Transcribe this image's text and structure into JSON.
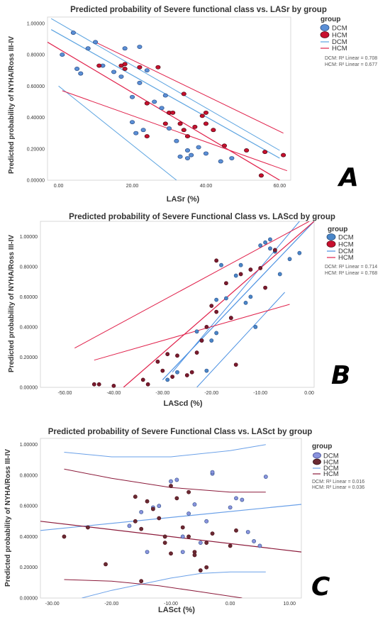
{
  "figure": {
    "panels": [
      {
        "letter": "A",
        "title": "Predicted probability of Severe functional class vs. LASr by group",
        "ylabel": "Predicted probability of NYHA/Ross III-IV",
        "xlabel": "LASr (%)",
        "legend": {
          "title": "group",
          "markers": [
            "DCM",
            "HCM"
          ],
          "lines": [
            "DCM",
            "HCM"
          ]
        },
        "r2": [
          "DCM: R² Linear = 0.708",
          "HCM: R² Linear = 0.677"
        ]
      },
      {
        "letter": "B",
        "title": "Predicted probability of Severe Functional Class vs. LAScd by group",
        "ylabel": "Predicted probability of NYHA/Ross III-IV",
        "xlabel": "LAScd (%)",
        "legend": {
          "title": "group",
          "markers": [
            "DCM",
            "HCM"
          ],
          "lines": [
            "DCM",
            "HCM"
          ]
        },
        "r2": [
          "DCM: R² Linear = 0.714",
          "HCM: R² Linear = 0.768"
        ]
      },
      {
        "letter": "C",
        "title": "Predicted probability of Severe Functional Class vs. LASct by group",
        "ylabel": "Predicted probability of NYHA/Ross III-IV",
        "xlabel": "LASct (%)",
        "legend": {
          "title": "group",
          "markers": [
            "DCM",
            "HCM"
          ],
          "lines": [
            "DCM",
            "HCM"
          ]
        },
        "r2": [
          "DCM: R² Linear = 0.016",
          "HCM: R² Linear = 0.036"
        ]
      }
    ]
  },
  "chart_data": [
    {
      "type": "scatter",
      "title": "Predicted probability of Severe functional class vs. LASr by group",
      "xlabel": "LASr (%)",
      "ylabel": "Predicted probability of NYHA/Ross III-IV",
      "xlim": [
        -3,
        63
      ],
      "ylim": [
        0,
        1.04
      ],
      "x_ticks": [
        0,
        20,
        40,
        60
      ],
      "x_tick_labels": [
        "0.00",
        "20.00",
        "40.00",
        "60.00"
      ],
      "y_ticks": [
        0,
        0.2,
        0.4,
        0.6,
        0.8,
        1.0
      ],
      "y_tick_labels": [
        "0.00000",
        "0.20000",
        "0.40000",
        "0.60000",
        "0.80000",
        "1.00000"
      ],
      "grid": true,
      "legend_position": "right",
      "colors": {
        "DCM": "#5b8fd6",
        "HCM": "#c8102e",
        "DCM_line": "#5ba3e0",
        "HCM_line": "#e0204a"
      },
      "series": [
        {
          "name": "DCM",
          "marker": "circle",
          "color": "#5b8fd6",
          "x": [
            1,
            4,
            5,
            6,
            8,
            10,
            12,
            15,
            17,
            18,
            20,
            20,
            21,
            22,
            22,
            23,
            24,
            26,
            28,
            29,
            30,
            32,
            33,
            35,
            35,
            36,
            38,
            40,
            44,
            47
          ],
          "y": [
            0.8,
            0.94,
            0.71,
            0.68,
            0.84,
            0.88,
            0.73,
            0.69,
            0.66,
            0.84,
            0.53,
            0.37,
            0.3,
            0.85,
            0.62,
            0.32,
            0.7,
            0.5,
            0.46,
            0.54,
            0.33,
            0.25,
            0.15,
            0.19,
            0.14,
            0.16,
            0.21,
            0.17,
            0.12,
            0.14
          ]
        },
        {
          "name": "HCM",
          "marker": "circle",
          "color": "#c8102e",
          "x": [
            11,
            17,
            18,
            18,
            22,
            24,
            24,
            27,
            29,
            30,
            31,
            33,
            34,
            34,
            35,
            37,
            39,
            40,
            40,
            42,
            45,
            51,
            55,
            56,
            61
          ],
          "y": [
            0.73,
            0.73,
            0.74,
            0.71,
            0.72,
            0.49,
            0.28,
            0.72,
            0.36,
            0.43,
            0.43,
            0.36,
            0.32,
            0.55,
            0.28,
            0.34,
            0.41,
            0.36,
            0.43,
            0.32,
            0.22,
            0.19,
            0.03,
            0.18,
            0.16
          ]
        }
      ],
      "fit_lines": [
        {
          "name": "DCM",
          "role": "fit",
          "x": [
            -2,
            60
          ],
          "y": [
            0.96,
            0.14
          ]
        },
        {
          "name": "DCM",
          "role": "upper bound",
          "x": [
            -2,
            60
          ],
          "y": [
            1.03,
            0.19
          ]
        },
        {
          "name": "DCM",
          "role": "lower bound",
          "x": [
            0,
            32
          ],
          "y": [
            0.6,
            0.0
          ]
        },
        {
          "name": "HCM",
          "role": "fit",
          "x": [
            -3,
            60
          ],
          "y": [
            0.88,
            0.0
          ]
        },
        {
          "name": "HCM",
          "role": "upper bound",
          "x": [
            10,
            61
          ],
          "y": [
            0.88,
            0.3
          ]
        },
        {
          "name": "HCM",
          "role": "lower bound",
          "x": [
            1,
            62
          ],
          "y": [
            0.57,
            0.06
          ]
        }
      ]
    },
    {
      "type": "scatter",
      "title": "Predicted probability of Severe Functional Class vs. LAScd by group",
      "xlabel": "LAScd (%)",
      "ylabel": "Predicted probability of NYHA/Ross III-IV",
      "xlim": [
        -55,
        1
      ],
      "ylim": [
        0,
        1.1
      ],
      "x_ticks": [
        -50,
        -40,
        -30,
        -20,
        -10,
        0
      ],
      "x_tick_labels": [
        "-50.00",
        "-40.00",
        "-30.00",
        "-20.00",
        "-10.00",
        "0.00"
      ],
      "y_ticks": [
        0,
        0.2,
        0.4,
        0.6,
        0.8,
        1.0
      ],
      "y_tick_labels": [
        "0.00000",
        "0.20000",
        "0.40000",
        "0.60000",
        "0.80000",
        "1.00000"
      ],
      "grid": true,
      "legend_position": "right",
      "colors": {
        "DCM": "#4a86c8",
        "HCM": "#c8102e",
        "DCM_line": "#4a90e2",
        "HCM_line": "#e0204a"
      },
      "series": [
        {
          "name": "DCM",
          "marker": "circle",
          "color": "#4a86c8",
          "x": [
            -29,
            -27,
            -23,
            -22,
            -21,
            -20,
            -19,
            -19,
            -18,
            -17,
            -16,
            -15,
            -14,
            -13,
            -12,
            -11,
            -10,
            -9,
            -8,
            -8,
            -7,
            -6,
            -4,
            -2
          ],
          "y": [
            0.05,
            0.1,
            0.37,
            0.31,
            0.11,
            0.31,
            0.36,
            0.58,
            0.81,
            0.59,
            0.46,
            0.74,
            0.81,
            0.56,
            0.6,
            0.4,
            0.94,
            0.96,
            0.92,
            0.98,
            0.9,
            0.75,
            0.85,
            0.89
          ]
        },
        {
          "name": "HCM",
          "marker": "circle",
          "color": "#7a1a2e",
          "x": [
            -44,
            -43,
            -40,
            -34,
            -33,
            -31,
            -30,
            -29,
            -28,
            -27,
            -25,
            -24,
            -23,
            -22,
            -21,
            -20,
            -19,
            -19,
            -17,
            -16,
            -15,
            -14,
            -12,
            -10,
            -9,
            -7
          ],
          "y": [
            0.02,
            0.02,
            0.01,
            0.05,
            0.02,
            0.17,
            0.11,
            0.22,
            0.07,
            0.21,
            0.08,
            0.1,
            0.23,
            0.31,
            0.4,
            0.54,
            0.84,
            0.5,
            0.69,
            0.46,
            0.15,
            0.75,
            0.78,
            0.79,
            0.66,
            0.91
          ]
        }
      ],
      "fit_lines": [
        {
          "name": "DCM",
          "role": "fit",
          "x": [
            -30,
            1
          ],
          "y": [
            0.05,
            1.1
          ]
        },
        {
          "name": "DCM",
          "role": "upper bound",
          "x": [
            -28,
            -2
          ],
          "y": [
            0.1,
            1.1
          ]
        },
        {
          "name": "DCM",
          "role": "lower bound",
          "x": [
            -23,
            -5
          ],
          "y": [
            0.0,
            0.63
          ]
        },
        {
          "name": "HCM",
          "role": "fit",
          "x": [
            -38,
            1
          ],
          "y": [
            0.0,
            1.1
          ]
        },
        {
          "name": "HCM",
          "role": "upper bound",
          "x": [
            -48,
            0
          ],
          "y": [
            0.26,
            1.1
          ]
        },
        {
          "name": "HCM",
          "role": "lower bound",
          "x": [
            -44,
            -4
          ],
          "y": [
            0.18,
            0.55
          ]
        }
      ]
    },
    {
      "type": "scatter",
      "title": "Predicted probability of Severe Functional Class vs. LASct by group",
      "xlabel": "LASct (%)",
      "ylabel": "Predicted probability of NYHA/Ross III-IV",
      "xlim": [
        -32,
        12
      ],
      "ylim": [
        0,
        1.04
      ],
      "x_ticks": [
        -30,
        -20,
        -10,
        0,
        10
      ],
      "x_tick_labels": [
        "-30.00",
        "-20.00",
        "-10.00",
        "0.00",
        "10.00"
      ],
      "y_ticks": [
        0,
        0.2,
        0.4,
        0.6,
        0.8,
        1.0
      ],
      "y_tick_labels": [
        "0.00000",
        "0.20000",
        "0.40000",
        "0.60000",
        "0.80000",
        "1.00000"
      ],
      "grid": true,
      "legend_position": "right",
      "colors": {
        "DCM": "#8a93dd",
        "HCM": "#6b2a33",
        "DCM_line": "#6aa0e8",
        "HCM_line": "#8b1a3a"
      },
      "series": [
        {
          "name": "DCM",
          "marker": "circle",
          "color": "#8a93dd",
          "x": [
            -17,
            -15,
            -14,
            -13,
            -12,
            -10,
            -9,
            -8,
            -8,
            -7,
            -6,
            -5,
            -4,
            -3,
            -3,
            0,
            1,
            2,
            3,
            4,
            5,
            6
          ],
          "y": [
            0.47,
            0.56,
            0.3,
            0.59,
            0.6,
            0.76,
            0.77,
            0.4,
            0.3,
            0.55,
            0.61,
            0.36,
            0.5,
            0.81,
            0.82,
            0.59,
            0.65,
            0.64,
            0.43,
            0.37,
            0.34,
            0.79
          ]
        },
        {
          "name": "HCM",
          "marker": "circle",
          "color": "#6b2a33",
          "x": [
            -28,
            -24,
            -21,
            -16,
            -16,
            -15,
            -15,
            -14,
            -13,
            -12,
            -11,
            -11,
            -10,
            -10,
            -9,
            -8,
            -7,
            -7,
            -6,
            -6,
            -5,
            -4,
            -4,
            -3,
            0,
            1
          ],
          "y": [
            0.4,
            0.46,
            0.22,
            0.66,
            0.5,
            0.45,
            0.11,
            0.63,
            0.58,
            0.52,
            0.4,
            0.36,
            0.73,
            0.29,
            0.65,
            0.46,
            0.4,
            0.69,
            0.3,
            0.28,
            0.18,
            0.36,
            0.2,
            0.42,
            0.34,
            0.44
          ]
        }
      ],
      "fit_lines": [
        {
          "name": "DCM",
          "role": "fit",
          "x": [
            -32,
            12
          ],
          "y": [
            0.44,
            0.61
          ]
        },
        {
          "name": "DCM",
          "role": "upper bound",
          "x": [
            -28,
            -20,
            -10,
            0,
            6
          ],
          "y": [
            0.95,
            0.92,
            0.92,
            0.96,
            1.0
          ]
        },
        {
          "name": "DCM",
          "role": "lower bound",
          "x": [
            -25,
            -20,
            -10,
            -5,
            0,
            6
          ],
          "y": [
            0.0,
            0.05,
            0.13,
            0.16,
            0.17,
            0.17
          ]
        },
        {
          "name": "HCM",
          "role": "fit",
          "x": [
            -32,
            12
          ],
          "y": [
            0.5,
            0.3
          ]
        },
        {
          "name": "HCM",
          "role": "upper bound",
          "x": [
            -28,
            -20,
            -10,
            0,
            6
          ],
          "y": [
            0.84,
            0.78,
            0.72,
            0.69,
            0.69
          ]
        },
        {
          "name": "HCM",
          "role": "lower bound",
          "x": [
            -28,
            -20,
            -12,
            -5,
            2
          ],
          "y": [
            0.12,
            0.11,
            0.08,
            0.04,
            0.0
          ]
        }
      ]
    }
  ]
}
